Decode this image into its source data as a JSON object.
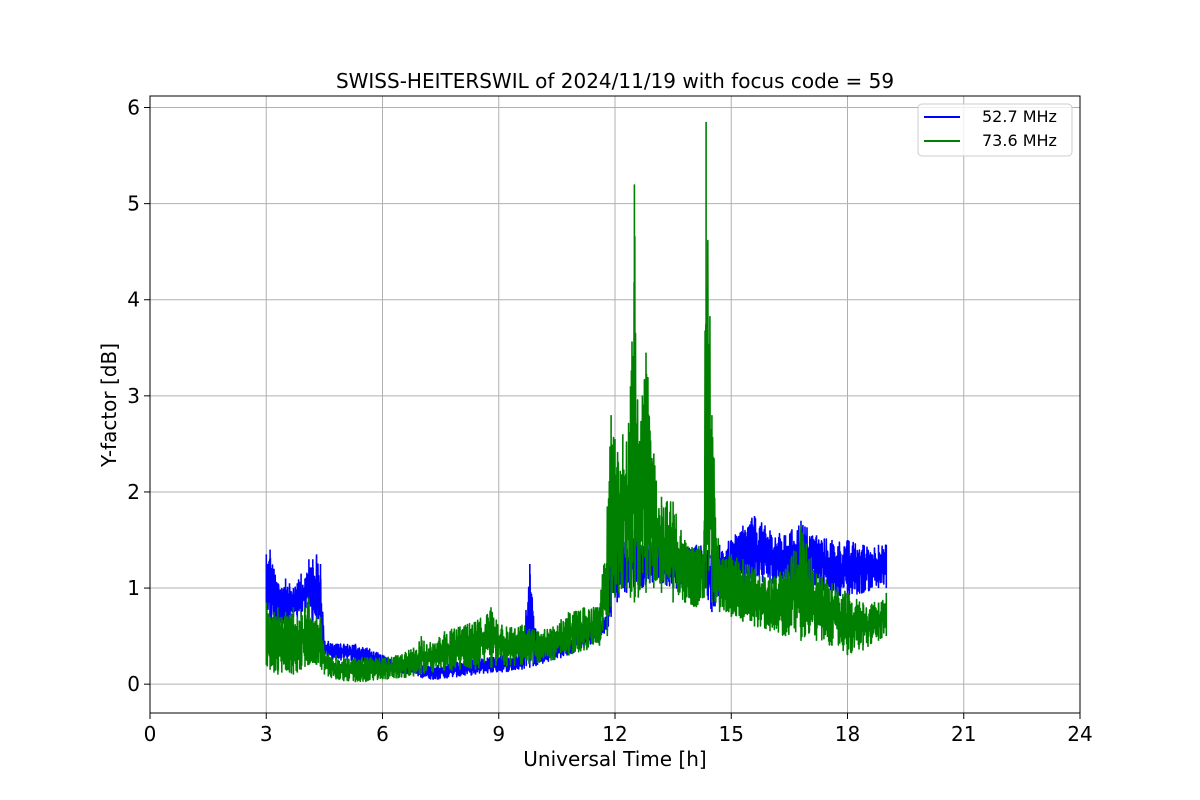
{
  "chart_data": {
    "type": "line",
    "title": "SWISS-HEITERSWIL of 2024/11/19 with focus code = 59",
    "xlabel": "Universal Time [h]",
    "ylabel": "Y-factor [dB]",
    "xlim": [
      0,
      24
    ],
    "ylim": [
      -0.3,
      6.12
    ],
    "xticks": [
      0,
      3,
      6,
      9,
      12,
      15,
      18,
      21,
      24
    ],
    "yticks": [
      0,
      1,
      2,
      3,
      4,
      5,
      6
    ],
    "xtick_labels": [
      "0",
      "3",
      "6",
      "9",
      "12",
      "15",
      "18",
      "21",
      "24"
    ],
    "ytick_labels": [
      "0",
      "1",
      "2",
      "3",
      "4",
      "5",
      "6"
    ],
    "grid": true,
    "legend_position": "top-right",
    "series": [
      {
        "name": "52.7 MHz",
        "color": "#0000ff",
        "x": [
          3.0,
          3.1,
          3.2,
          3.3,
          3.4,
          3.5,
          3.6,
          3.7,
          3.8,
          3.9,
          4.0,
          4.1,
          4.2,
          4.3,
          4.4,
          4.5,
          4.6,
          4.8,
          5.0,
          5.3,
          5.6,
          6.0,
          6.4,
          6.8,
          7.0,
          7.3,
          7.6,
          8.0,
          8.4,
          8.8,
          9.2,
          9.6,
          9.8,
          10.0,
          10.4,
          10.8,
          11.2,
          11.6,
          11.8,
          11.9,
          12.1,
          12.3,
          12.5,
          12.7,
          12.9,
          13.2,
          13.5,
          13.8,
          14.1,
          14.3,
          14.5,
          14.7,
          15.0,
          15.3,
          15.6,
          16.0,
          16.4,
          16.8,
          17.2,
          17.6,
          18.0,
          18.4,
          18.8,
          19.0
        ],
        "lower": [
          0.5,
          0.55,
          0.6,
          0.55,
          0.6,
          0.65,
          0.6,
          0.7,
          0.65,
          0.7,
          0.75,
          0.7,
          0.65,
          0.6,
          0.55,
          0.3,
          0.27,
          0.25,
          0.25,
          0.23,
          0.2,
          0.15,
          0.12,
          0.1,
          0.07,
          0.05,
          0.06,
          0.08,
          0.1,
          0.12,
          0.13,
          0.15,
          0.17,
          0.2,
          0.25,
          0.3,
          0.38,
          0.45,
          0.55,
          0.7,
          0.9,
          0.95,
          1.0,
          1.0,
          1.05,
          1.05,
          1.0,
          1.0,
          1.0,
          1.0,
          0.75,
          0.85,
          0.95,
          1.0,
          1.05,
          1.05,
          1.05,
          1.05,
          1.0,
          0.95,
          0.9,
          0.95,
          1.0,
          1.0
        ],
        "upper": [
          1.35,
          1.4,
          1.2,
          1.05,
          1.0,
          1.1,
          1.05,
          1.0,
          1.05,
          1.15,
          1.1,
          1.3,
          1.3,
          1.35,
          1.25,
          0.45,
          0.45,
          0.42,
          0.42,
          0.42,
          0.38,
          0.3,
          0.26,
          0.22,
          0.2,
          0.2,
          0.21,
          0.24,
          0.26,
          0.28,
          0.3,
          0.32,
          1.25,
          0.42,
          0.45,
          0.5,
          0.6,
          0.65,
          0.75,
          1.75,
          1.6,
          1.55,
          1.6,
          1.45,
          1.5,
          1.45,
          1.4,
          1.42,
          1.45,
          1.45,
          1.4,
          1.45,
          1.5,
          1.65,
          1.75,
          1.6,
          1.55,
          1.7,
          1.55,
          1.5,
          1.5,
          1.45,
          1.45,
          1.45
        ]
      },
      {
        "name": "73.6 MHz",
        "color": "#008000",
        "x": [
          3.0,
          3.1,
          3.2,
          3.3,
          3.4,
          3.5,
          3.6,
          3.7,
          3.8,
          3.9,
          4.0,
          4.1,
          4.2,
          4.3,
          4.4,
          4.5,
          4.6,
          4.8,
          5.0,
          5.3,
          5.6,
          6.0,
          6.4,
          6.8,
          7.0,
          7.3,
          7.6,
          8.0,
          8.4,
          8.8,
          9.2,
          9.6,
          10.0,
          10.4,
          10.8,
          11.2,
          11.6,
          11.8,
          11.9,
          12.0,
          12.2,
          12.4,
          12.5,
          12.6,
          12.8,
          13.0,
          13.2,
          13.5,
          13.8,
          14.1,
          14.3,
          14.35,
          14.5,
          14.7,
          15.0,
          15.3,
          15.6,
          16.0,
          16.4,
          16.8,
          17.2,
          17.6,
          18.0,
          18.4,
          18.8,
          19.0
        ],
        "lower": [
          0.2,
          0.15,
          0.12,
          0.1,
          0.12,
          0.15,
          0.12,
          0.1,
          0.12,
          0.15,
          0.18,
          0.2,
          0.22,
          0.2,
          0.18,
          0.1,
          0.08,
          0.05,
          0.03,
          0.02,
          0.03,
          0.05,
          0.06,
          0.08,
          0.1,
          0.12,
          0.14,
          0.15,
          0.15,
          0.17,
          0.18,
          0.2,
          0.22,
          0.25,
          0.3,
          0.35,
          0.4,
          0.5,
          0.8,
          0.9,
          1.0,
          0.9,
          0.85,
          0.9,
          0.95,
          1.0,
          0.95,
          0.85,
          0.85,
          0.8,
          0.9,
          1.0,
          0.85,
          0.75,
          0.7,
          0.65,
          0.6,
          0.55,
          0.5,
          0.45,
          0.45,
          0.4,
          0.3,
          0.35,
          0.45,
          0.5
        ],
        "upper": [
          0.85,
          0.7,
          0.75,
          0.8,
          0.7,
          0.75,
          0.72,
          0.8,
          0.7,
          0.75,
          0.8,
          0.9,
          0.65,
          0.7,
          0.7,
          0.35,
          0.32,
          0.3,
          0.28,
          0.27,
          0.28,
          0.27,
          0.3,
          0.38,
          0.5,
          0.42,
          0.55,
          0.6,
          0.65,
          0.8,
          0.6,
          0.62,
          0.55,
          0.6,
          0.75,
          0.8,
          0.8,
          1.85,
          2.8,
          2.55,
          2.6,
          3.1,
          5.2,
          2.5,
          3.45,
          2.4,
          1.95,
          1.9,
          1.5,
          1.4,
          1.6,
          5.85,
          2.8,
          1.3,
          1.35,
          1.3,
          1.2,
          1.1,
          1.2,
          1.65,
          1.15,
          1.05,
          0.95,
          0.85,
          0.85,
          0.95
        ]
      }
    ]
  }
}
